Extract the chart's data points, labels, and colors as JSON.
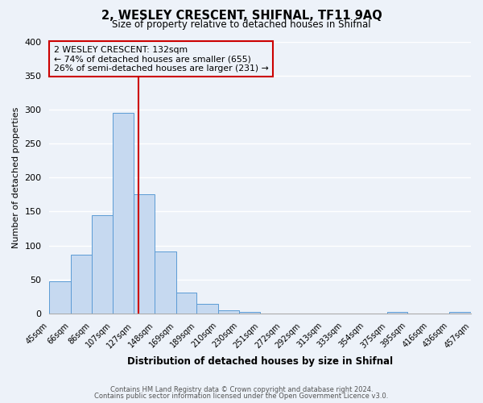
{
  "title": "2, WESLEY CRESCENT, SHIFNAL, TF11 9AQ",
  "subtitle": "Size of property relative to detached houses in Shifnal",
  "xlabel": "Distribution of detached houses by size in Shifnal",
  "ylabel": "Number of detached properties",
  "bin_labels": [
    "45sqm",
    "66sqm",
    "86sqm",
    "107sqm",
    "127sqm",
    "148sqm",
    "169sqm",
    "189sqm",
    "210sqm",
    "230sqm",
    "251sqm",
    "272sqm",
    "292sqm",
    "313sqm",
    "333sqm",
    "354sqm",
    "375sqm",
    "395sqm",
    "416sqm",
    "436sqm",
    "457sqm"
  ],
  "bin_edges": [
    45,
    66,
    86,
    107,
    127,
    148,
    169,
    189,
    210,
    230,
    251,
    272,
    292,
    313,
    333,
    354,
    375,
    395,
    416,
    436,
    457
  ],
  "bar_heights": [
    47,
    86,
    145,
    295,
    175,
    91,
    31,
    14,
    5,
    2,
    0,
    0,
    0,
    0,
    0,
    0,
    2,
    0,
    0,
    2
  ],
  "bar_color": "#c6d9f0",
  "bar_edge_color": "#5b9bd5",
  "red_line_x": 132,
  "ylim": [
    0,
    400
  ],
  "yticks": [
    0,
    50,
    100,
    150,
    200,
    250,
    300,
    350,
    400
  ],
  "annotation_title": "2 WESLEY CRESCENT: 132sqm",
  "annotation_line1": "← 74% of detached houses are smaller (655)",
  "annotation_line2": "26% of semi-detached houses are larger (231) →",
  "annotation_box_color": "#cc0000",
  "footnote1": "Contains HM Land Registry data © Crown copyright and database right 2024.",
  "footnote2": "Contains public sector information licensed under the Open Government Licence v3.0.",
  "bg_color": "#edf2f9",
  "grid_color": "#ffffff"
}
